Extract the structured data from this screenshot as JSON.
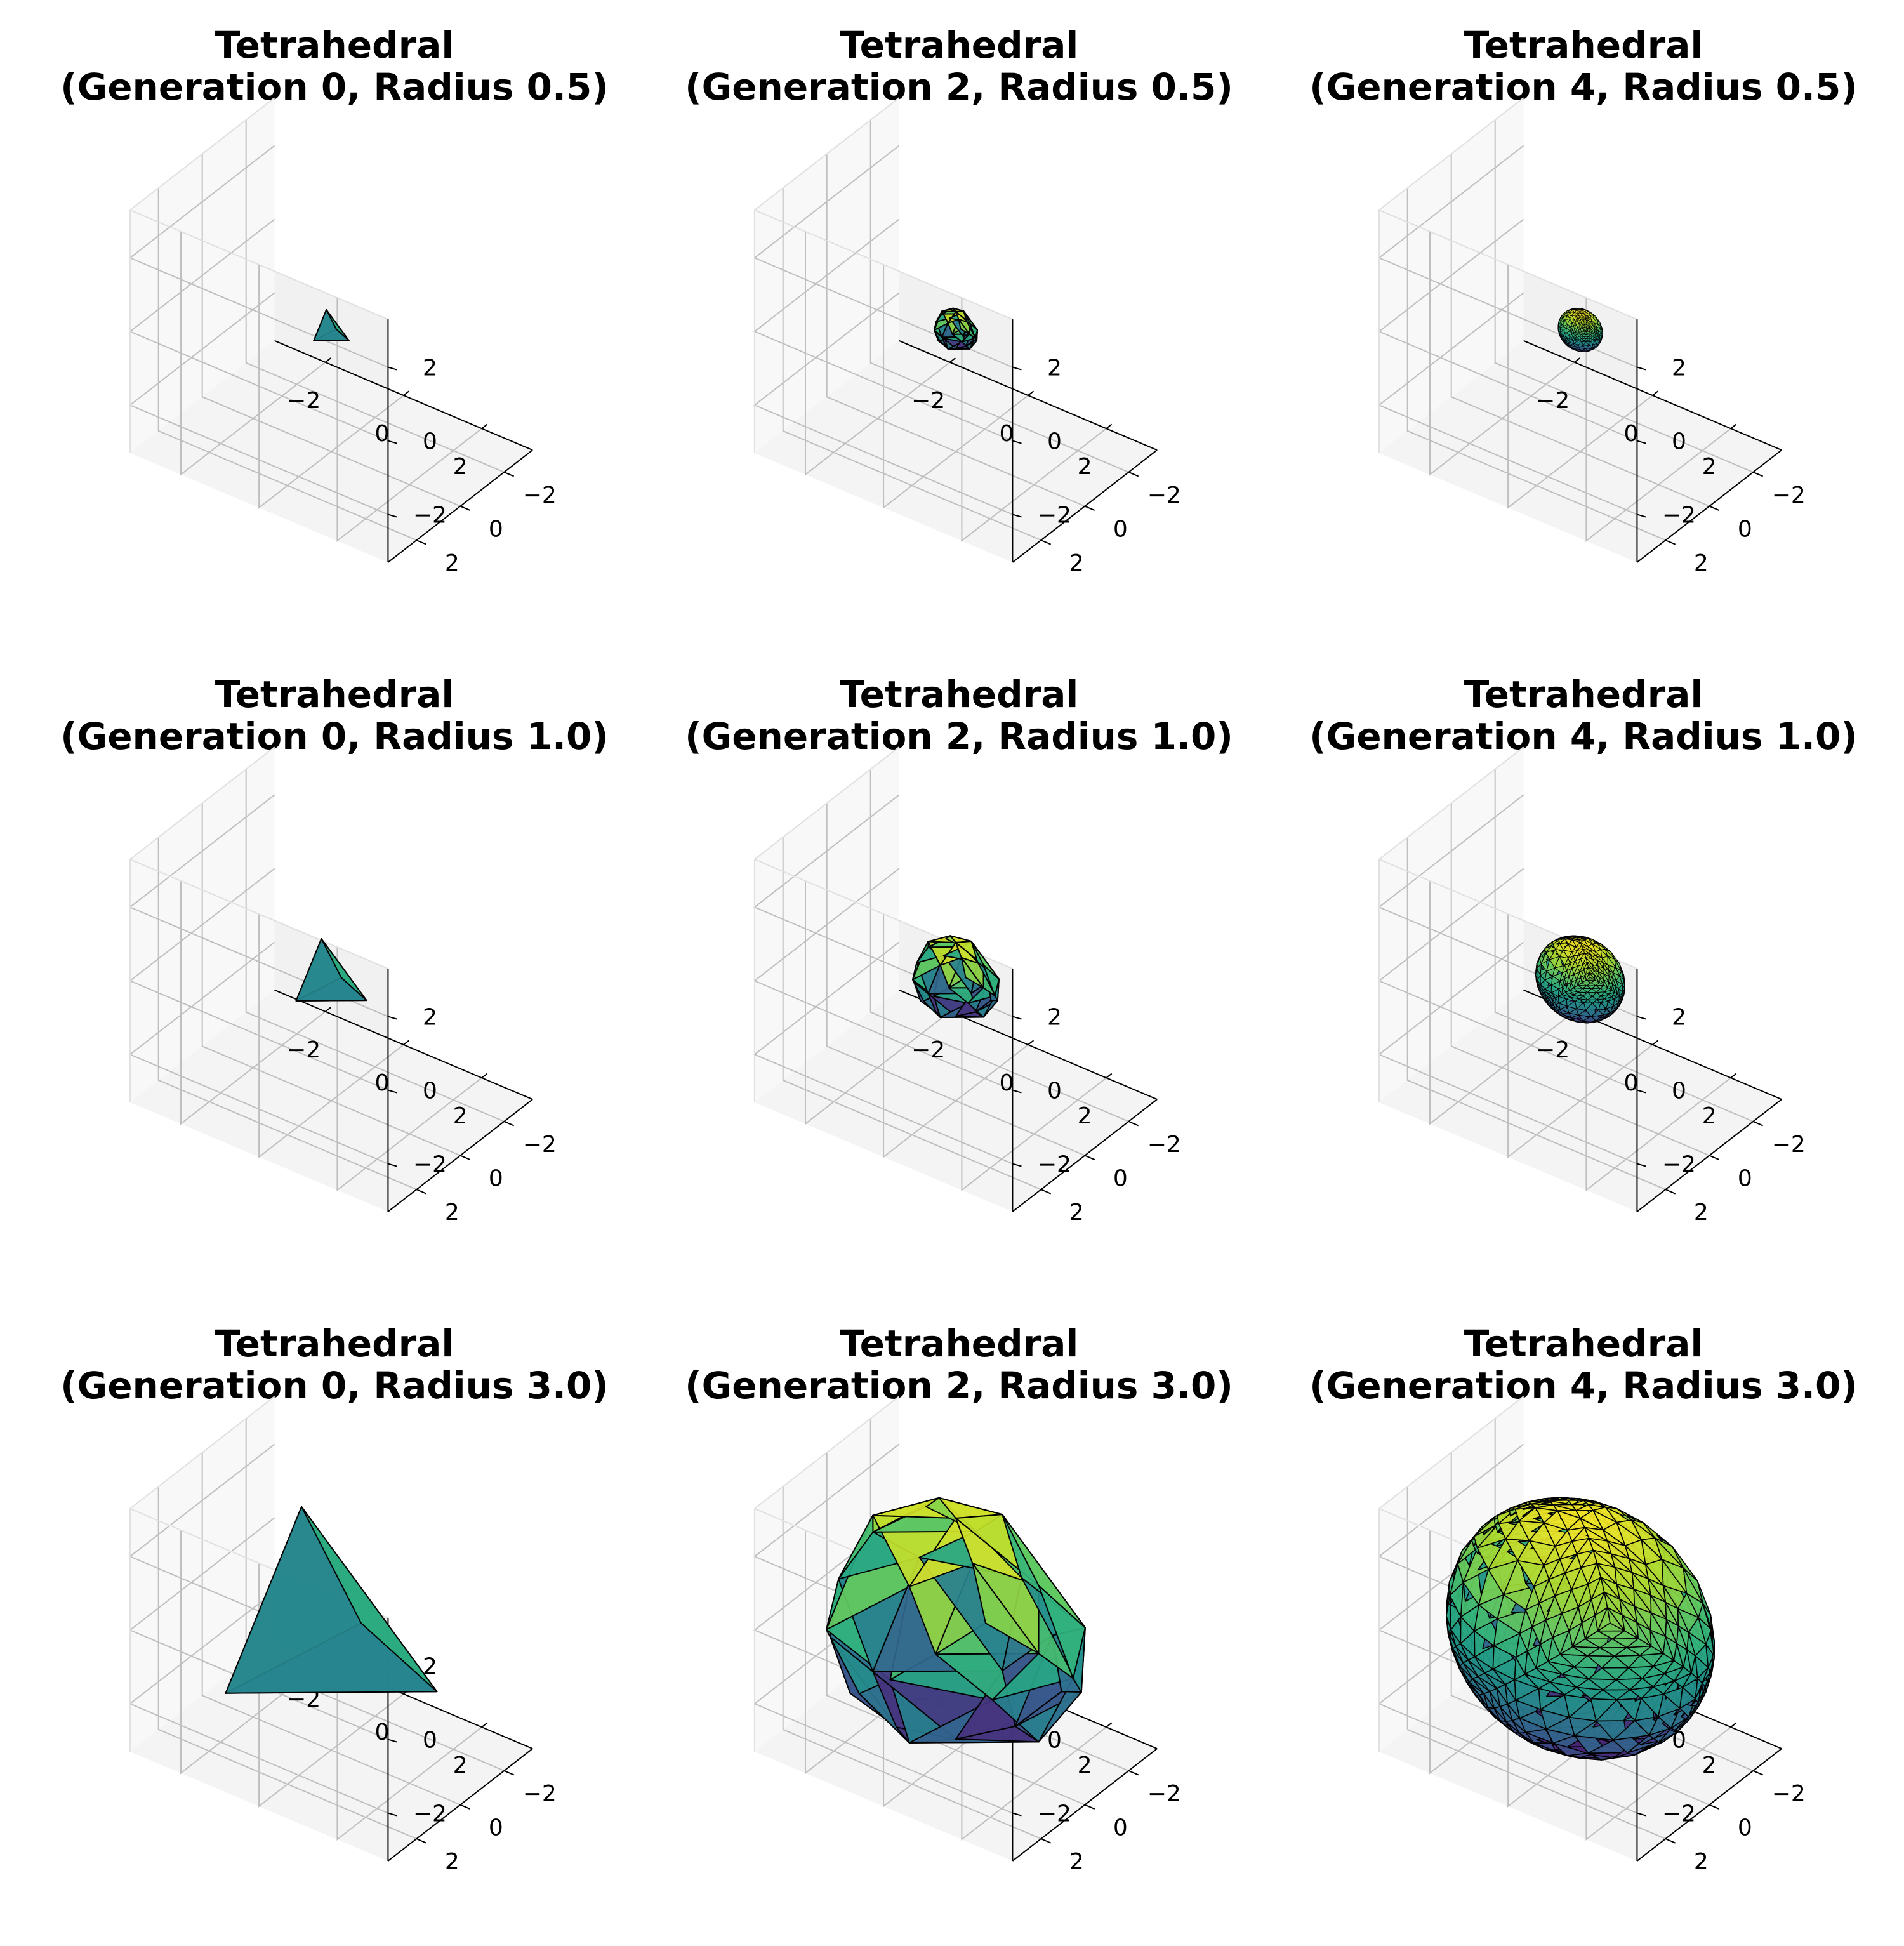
{
  "chart_data": [
    {
      "type": "3d-mesh",
      "polyhedron": "Tetrahedral",
      "generation": 0,
      "radius": 0.5,
      "title": [
        "Tetrahedral",
        "(Generation 0, Radius 0.5)"
      ],
      "xticks": [
        "−2",
        "0",
        "2"
      ],
      "yticks": [
        "−2",
        "0",
        "2"
      ],
      "zticks": [
        "−2",
        "0",
        "2"
      ],
      "xlim": [
        -3.3,
        3.3
      ],
      "ylim": [
        -3.3,
        3.3
      ],
      "zlim": [
        -3.3,
        3.3
      ],
      "colormap": "viridis",
      "grid": true
    },
    {
      "type": "3d-mesh",
      "polyhedron": "Tetrahedral",
      "generation": 2,
      "radius": 0.5,
      "title": [
        "Tetrahedral",
        "(Generation 2, Radius 0.5)"
      ],
      "xticks": [
        "−2",
        "0",
        "2"
      ],
      "yticks": [
        "−2",
        "0",
        "2"
      ],
      "zticks": [
        "−2",
        "0",
        "2"
      ],
      "xlim": [
        -3.3,
        3.3
      ],
      "ylim": [
        -3.3,
        3.3
      ],
      "zlim": [
        -3.3,
        3.3
      ],
      "colormap": "viridis",
      "grid": true
    },
    {
      "type": "3d-mesh",
      "polyhedron": "Tetrahedral",
      "generation": 4,
      "radius": 0.5,
      "title": [
        "Tetrahedral",
        "(Generation 4, Radius 0.5)"
      ],
      "xticks": [
        "−2",
        "0",
        "2"
      ],
      "yticks": [
        "−2",
        "0",
        "2"
      ],
      "zticks": [
        "−2",
        "0",
        "2"
      ],
      "xlim": [
        -3.3,
        3.3
      ],
      "ylim": [
        -3.3,
        3.3
      ],
      "zlim": [
        -3.3,
        3.3
      ],
      "colormap": "viridis",
      "grid": true
    },
    {
      "type": "3d-mesh",
      "polyhedron": "Tetrahedral",
      "generation": 0,
      "radius": 1.0,
      "title": [
        "Tetrahedral",
        "(Generation 0, Radius 1.0)"
      ],
      "xticks": [
        "−2",
        "0",
        "2"
      ],
      "yticks": [
        "−2",
        "0",
        "2"
      ],
      "zticks": [
        "−2",
        "0",
        "2"
      ],
      "xlim": [
        -3.3,
        3.3
      ],
      "ylim": [
        -3.3,
        3.3
      ],
      "zlim": [
        -3.3,
        3.3
      ],
      "colormap": "viridis",
      "grid": true
    },
    {
      "type": "3d-mesh",
      "polyhedron": "Tetrahedral",
      "generation": 2,
      "radius": 1.0,
      "title": [
        "Tetrahedral",
        "(Generation 2, Radius 1.0)"
      ],
      "xticks": [
        "−2",
        "0",
        "2"
      ],
      "yticks": [
        "−2",
        "0",
        "2"
      ],
      "zticks": [
        "−2",
        "0",
        "2"
      ],
      "xlim": [
        -3.3,
        3.3
      ],
      "ylim": [
        -3.3,
        3.3
      ],
      "zlim": [
        -3.3,
        3.3
      ],
      "colormap": "viridis",
      "grid": true
    },
    {
      "type": "3d-mesh",
      "polyhedron": "Tetrahedral",
      "generation": 4,
      "radius": 1.0,
      "title": [
        "Tetrahedral",
        "(Generation 4, Radius 1.0)"
      ],
      "xticks": [
        "−2",
        "0",
        "2"
      ],
      "yticks": [
        "−2",
        "0",
        "2"
      ],
      "zticks": [
        "−2",
        "0",
        "2"
      ],
      "xlim": [
        -3.3,
        3.3
      ],
      "ylim": [
        -3.3,
        3.3
      ],
      "zlim": [
        -3.3,
        3.3
      ],
      "colormap": "viridis",
      "grid": true
    },
    {
      "type": "3d-mesh",
      "polyhedron": "Tetrahedral",
      "generation": 0,
      "radius": 3.0,
      "title": [
        "Tetrahedral",
        "(Generation 0, Radius 3.0)"
      ],
      "xticks": [
        "−2",
        "0",
        "2"
      ],
      "yticks": [
        "−2",
        "0",
        "2"
      ],
      "zticks": [
        "−2",
        "0",
        "2"
      ],
      "xlim": [
        -3.3,
        3.3
      ],
      "ylim": [
        -3.3,
        3.3
      ],
      "zlim": [
        -3.3,
        3.3
      ],
      "colormap": "viridis",
      "grid": true
    },
    {
      "type": "3d-mesh",
      "polyhedron": "Tetrahedral",
      "generation": 2,
      "radius": 3.0,
      "title": [
        "Tetrahedral",
        "(Generation 2, Radius 3.0)"
      ],
      "xticks": [
        "−2",
        "0",
        "2"
      ],
      "yticks": [
        "−2",
        "0",
        "2"
      ],
      "zticks": [
        "−2",
        "0",
        "2"
      ],
      "xlim": [
        -3.3,
        3.3
      ],
      "ylim": [
        -3.3,
        3.3
      ],
      "zlim": [
        -3.3,
        3.3
      ],
      "colormap": "viridis",
      "grid": true
    },
    {
      "type": "3d-mesh",
      "polyhedron": "Tetrahedral",
      "generation": 4,
      "radius": 3.0,
      "title": [
        "Tetrahedral",
        "(Generation 4, Radius 3.0)"
      ],
      "xticks": [
        "−2",
        "0",
        "2"
      ],
      "yticks": [
        "−2",
        "0",
        "2"
      ],
      "zticks": [
        "−2",
        "0",
        "2"
      ],
      "xlim": [
        -3.3,
        3.3
      ],
      "ylim": [
        -3.3,
        3.3
      ],
      "zlim": [
        -3.3,
        3.3
      ],
      "colormap": "viridis",
      "grid": true
    }
  ],
  "colors": {
    "pane_left": "#f8f8f8",
    "pane_right": "#f1f1f1",
    "pane_floor": "#f4f4f4",
    "grid": "#bfbfbf",
    "axis": "#000000",
    "edge": "#000000",
    "viridis": [
      "#440154",
      "#482878",
      "#3e4989",
      "#31688e",
      "#26828e",
      "#1f9e89",
      "#35b779",
      "#6ece58",
      "#b5de2b",
      "#fde725"
    ]
  }
}
